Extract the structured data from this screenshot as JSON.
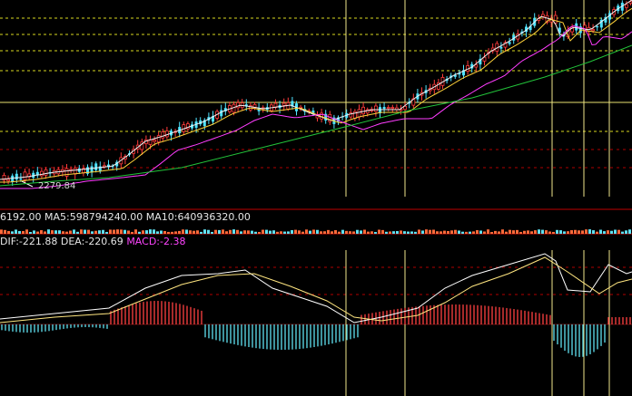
{
  "colors": {
    "background": "#000000",
    "up_candle": "#ff3b3b",
    "down_candle": "#4fe3ff",
    "ma_white": "#f2f2f2",
    "ma_yellow": "#ffd23a",
    "ma_magenta": "#ff3dff",
    "ma_green": "#22c43a",
    "grid_dashed": "#d8d820",
    "grid_red": "#b00000",
    "separator_red": "#c00000",
    "vline": "#f0e68c",
    "dif_line": "#ffffff",
    "dea_line": "#ffe680",
    "macd_up": "#ff4040",
    "macd_down": "#5fe0f0"
  },
  "price_panel": {
    "low_label": "2279.84",
    "low_marker_index": 0.03
  },
  "volume_panel": {
    "vol": "6192.00",
    "ma5_label": "MA5:",
    "ma5_value": "598794240.00",
    "ma10_label": "MA10:",
    "ma10_value": "640936320.00"
  },
  "macd_panel": {
    "dif_label": "DIF:",
    "dif_value": "-221.88",
    "dea_label": "DEA:",
    "dea_value": "-220.69",
    "macd_label": "MACD:",
    "macd_value": "-2.38"
  },
  "chart_data": [
    {
      "type": "candlestick",
      "title": "",
      "annotations": [
        "2279.84"
      ],
      "series": [
        {
          "name": "",
          "kind": "ohlc"
        },
        {
          "name": "",
          "kind": "line",
          "color": "#f2f2f2"
        },
        {
          "name": "",
          "kind": "line",
          "color": "#ffd23a"
        },
        {
          "name": "",
          "kind": "line",
          "color": "#ff3dff"
        },
        {
          "name": "",
          "kind": "line",
          "color": "#22c43a"
        }
      ],
      "grid": true
    },
    {
      "type": "bar",
      "title": "",
      "legend": [
        "6192.00",
        "MA5: 598794240.00",
        "MA10: 640936320.00"
      ]
    },
    {
      "type": "line",
      "title": "",
      "legend": [
        "DIF: -221.88",
        "DEA: -220.69",
        "MACD: -2.38"
      ],
      "series": [
        {
          "name": "DIF",
          "color": "#ffffff"
        },
        {
          "name": "DEA",
          "color": "#ffe680"
        },
        {
          "name": "MACD",
          "color": "#ff4040"
        }
      ]
    }
  ]
}
